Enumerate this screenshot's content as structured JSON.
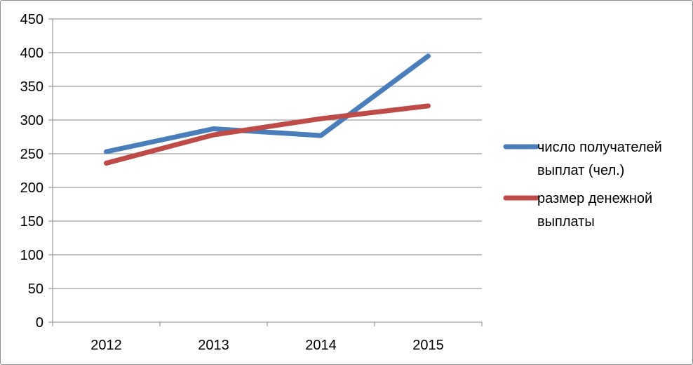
{
  "chart_data": {
    "type": "line",
    "categories": [
      "2012",
      "2013",
      "2014",
      "2015"
    ],
    "series": [
      {
        "name": "число получателей выплат (чел.)",
        "legend_lines": [
          "число получателей",
          "выплат (чел.)"
        ],
        "color": "#4a7ebb",
        "values": [
          253,
          287,
          277,
          395
        ]
      },
      {
        "name": "размер денежной выплаты",
        "legend_lines": [
          "размер денежной",
          "выплаты"
        ],
        "color": "#be4b48",
        "values": [
          236,
          278,
          302,
          321
        ]
      }
    ],
    "y_ticks": [
      "0",
      "50",
      "100",
      "150",
      "200",
      "250",
      "300",
      "350",
      "400",
      "450"
    ],
    "ylim": [
      0,
      450
    ],
    "grid": true,
    "legend_position": "right",
    "title": "",
    "xlabel": "",
    "ylabel": ""
  }
}
